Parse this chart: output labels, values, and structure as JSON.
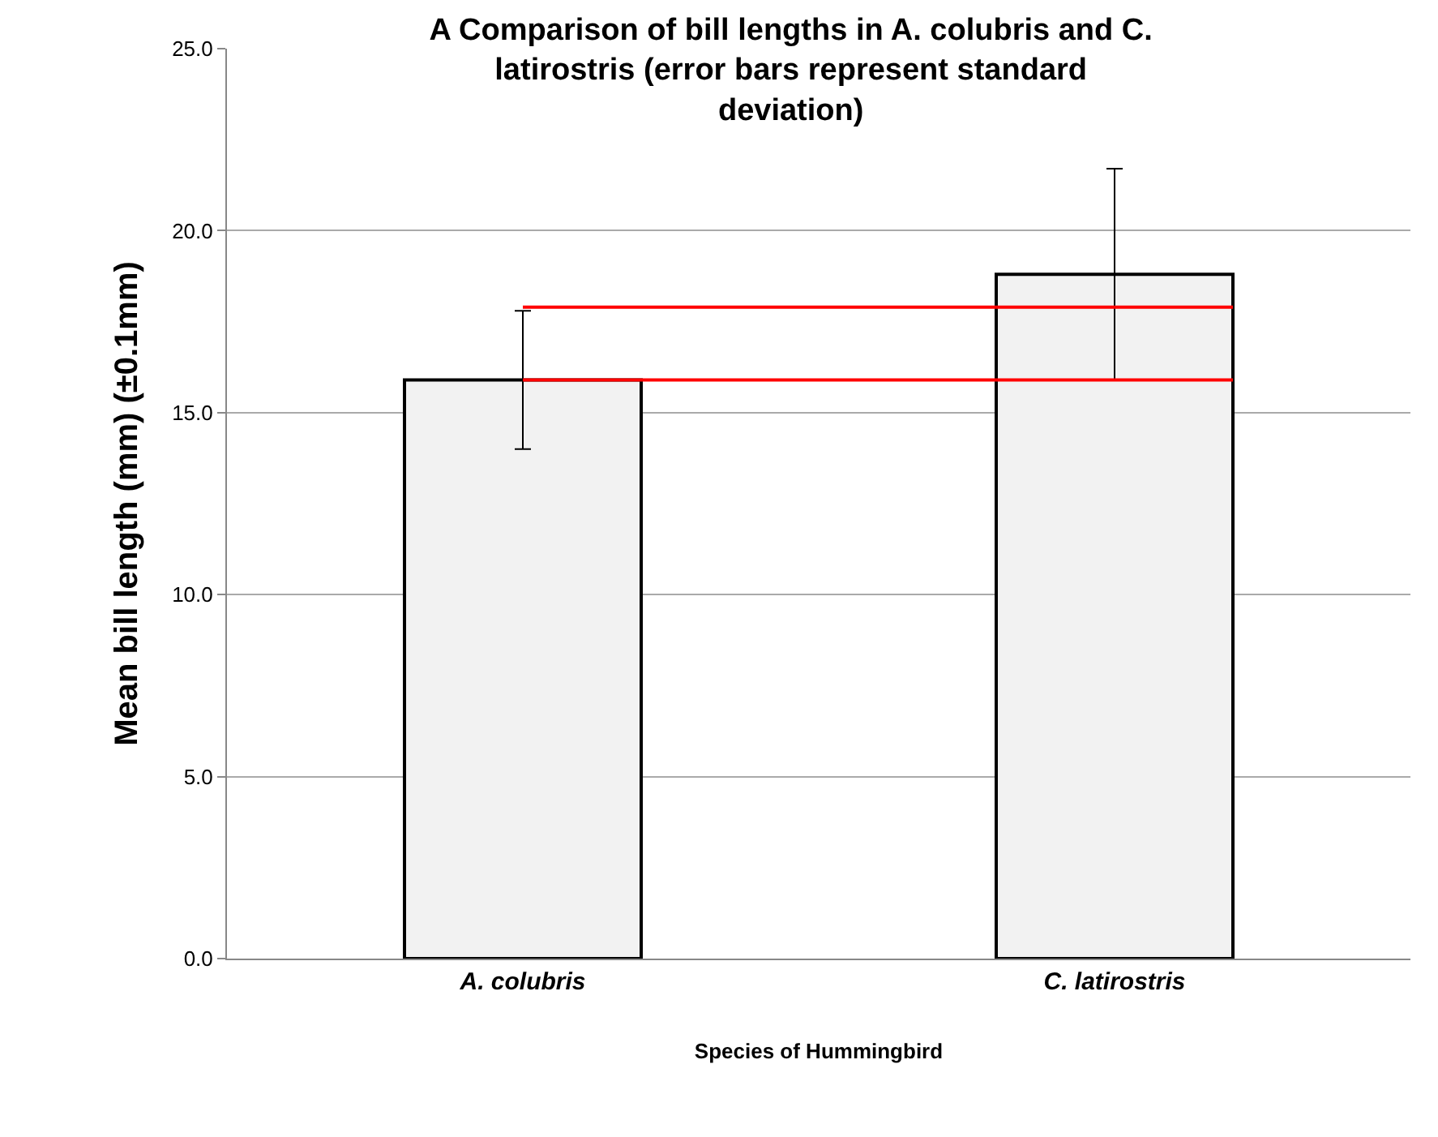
{
  "chart_data": {
    "type": "bar",
    "title": "A Comparison of bill lengths in A. colubris and C. latirostris (error bars represent standard deviation)",
    "xlabel": "Species of Hummingbird",
    "ylabel": "Mean bill length (mm) (±0.1mm)",
    "categories": [
      "A. colubris",
      "C. latirostris"
    ],
    "series": [
      {
        "color": "#f2f2f2",
        "values": [
          15.9,
          18.8
        ],
        "errors": [
          1.9,
          2.9
        ]
      }
    ],
    "ylim": [
      0,
      25
    ],
    "yticks": [
      {
        "value": 0,
        "label": "0.0"
      },
      {
        "value": 5,
        "label": "5.0"
      },
      {
        "value": 10,
        "label": "10.0"
      },
      {
        "value": 15,
        "label": "15.0"
      },
      {
        "value": 20,
        "label": "20.0"
      },
      {
        "value": 25,
        "label": "25.0"
      }
    ],
    "ref_lines": [
      {
        "axis": "y",
        "value": 17.9,
        "color": "#ff0000"
      },
      {
        "axis": "y",
        "value": 15.9,
        "color": "#ff0000"
      }
    ],
    "grid": "y",
    "legend": false
  }
}
